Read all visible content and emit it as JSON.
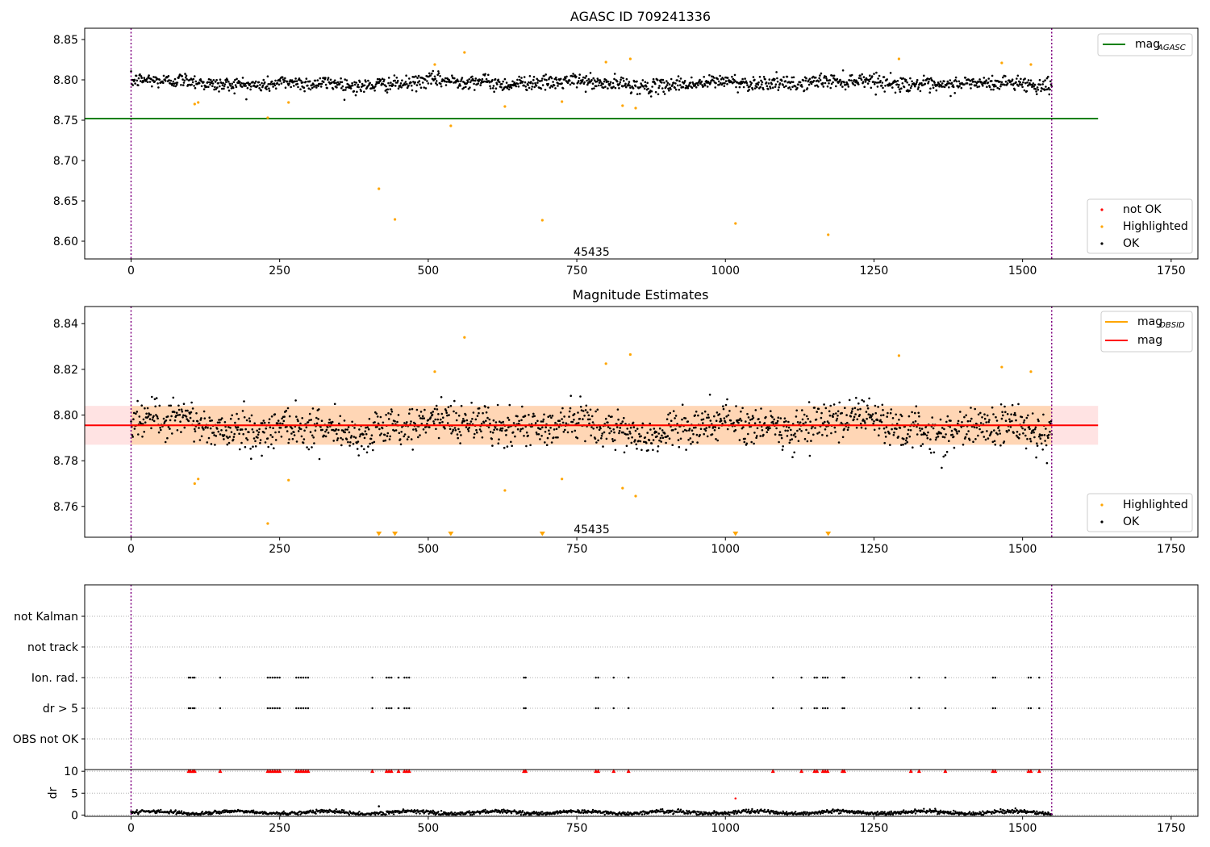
{
  "chart_data": [
    {
      "type": "scatter",
      "title": "AGASC ID 709241336",
      "xlabel": "",
      "ylabel": "",
      "xlim": [
        -78,
        1795
      ],
      "ylim": [
        8.578,
        8.864
      ],
      "xticks": [
        "0",
        "250",
        "500",
        "750",
        "1000",
        "1250",
        "1500",
        "1750"
      ],
      "xtick_values": [
        0,
        250,
        500,
        750,
        1000,
        1250,
        1500,
        1750
      ],
      "yticks": [
        "8.60",
        "8.65",
        "8.70",
        "8.75",
        "8.80",
        "8.85"
      ],
      "ytick_values": [
        8.6,
        8.65,
        8.7,
        8.75,
        8.8,
        8.85
      ],
      "grid": false,
      "vlines": [
        0,
        1549
      ],
      "obsid_label": "45435",
      "obsid_label_x": 775,
      "obsid_label_y": 8.586,
      "mag_agasc": 8.752,
      "mag_agasc_x": [
        -78,
        1627
      ],
      "ok_series": {
        "name": "OK",
        "x_range": [
          0,
          1549
        ],
        "center": 8.796,
        "scatter": 0.009,
        "color": "#000000"
      },
      "highlighted": [
        {
          "x": 107,
          "y": 8.77
        },
        {
          "x": 113,
          "y": 8.772
        },
        {
          "x": 230,
          "y": 8.753
        },
        {
          "x": 265,
          "y": 8.772
        },
        {
          "x": 417,
          "y": 8.665
        },
        {
          "x": 444,
          "y": 8.627
        },
        {
          "x": 511,
          "y": 8.819
        },
        {
          "x": 538,
          "y": 8.743
        },
        {
          "x": 561,
          "y": 8.834
        },
        {
          "x": 629,
          "y": 8.767
        },
        {
          "x": 692,
          "y": 8.626
        },
        {
          "x": 725,
          "y": 8.773
        },
        {
          "x": 799,
          "y": 8.822
        },
        {
          "x": 827,
          "y": 8.768
        },
        {
          "x": 840,
          "y": 8.826
        },
        {
          "x": 849,
          "y": 8.765
        },
        {
          "x": 1017,
          "y": 8.622
        },
        {
          "x": 1173,
          "y": 8.608
        },
        {
          "x": 1292,
          "y": 8.826
        },
        {
          "x": 1465,
          "y": 8.821
        },
        {
          "x": 1514,
          "y": 8.819
        }
      ],
      "legend_top": [
        {
          "label": "mag",
          "sub": "AGASC",
          "color": "#008000"
        }
      ],
      "legend_bottom": [
        {
          "label": "not OK",
          "color": "#ff0000"
        },
        {
          "label": "Highlighted",
          "color": "#ffa500"
        },
        {
          "label": "OK",
          "color": "#000000"
        }
      ],
      "legend_top_position": "top-right",
      "legend_bottom_position": "bottom-right"
    },
    {
      "type": "scatter",
      "title": "Magnitude Estimates",
      "xlabel": "",
      "ylabel": "",
      "xlim": [
        -78,
        1795
      ],
      "ylim": [
        8.7465,
        8.8475
      ],
      "xticks": [
        "0",
        "250",
        "500",
        "750",
        "1000",
        "1250",
        "1500",
        "1750"
      ],
      "xtick_values": [
        0,
        250,
        500,
        750,
        1000,
        1250,
        1500,
        1750
      ],
      "yticks": [
        "8.76",
        "8.78",
        "8.80",
        "8.82",
        "8.84"
      ],
      "ytick_values": [
        8.76,
        8.78,
        8.8,
        8.82,
        8.84
      ],
      "grid": false,
      "vlines": [
        0,
        1549
      ],
      "obsid_label": "45435",
      "obsid_label_x": 775,
      "obsid_label_y": 8.7497,
      "mag": 8.7955,
      "mag_x": [
        -78,
        1627
      ],
      "mag_band": [
        8.787,
        8.804
      ],
      "mag_obsid": 8.7955,
      "mag_obsid_x": [
        0,
        1549
      ],
      "obsid_band": [
        8.787,
        8.804
      ],
      "ok_series": {
        "name": "OK",
        "x_range": [
          0,
          1549
        ],
        "center": 8.795,
        "scatter": 0.0085,
        "color": "#000000"
      },
      "highlighted": [
        {
          "x": 107,
          "y": 8.77
        },
        {
          "x": 113,
          "y": 8.772
        },
        {
          "x": 230,
          "y": 8.7525
        },
        {
          "x": 265,
          "y": 8.7715
        },
        {
          "x": 511,
          "y": 8.819
        },
        {
          "x": 561,
          "y": 8.834
        },
        {
          "x": 629,
          "y": 8.767
        },
        {
          "x": 725,
          "y": 8.772
        },
        {
          "x": 799,
          "y": 8.8225
        },
        {
          "x": 827,
          "y": 8.768
        },
        {
          "x": 840,
          "y": 8.8265
        },
        {
          "x": 849,
          "y": 8.7645
        },
        {
          "x": 1292,
          "y": 8.826
        },
        {
          "x": 1465,
          "y": 8.821
        },
        {
          "x": 1514,
          "y": 8.819
        }
      ],
      "off_scale_low": [
        417,
        444,
        538,
        692,
        1017,
        1173
      ],
      "legend_top": [
        {
          "label": "mag",
          "sub": "OBSID",
          "color": "#ffa500"
        },
        {
          "label": "mag",
          "sub": "",
          "color": "#ff0000"
        }
      ],
      "legend_bottom": [
        {
          "label": "Highlighted",
          "color": "#ffa500"
        },
        {
          "label": "OK",
          "color": "#000000"
        }
      ],
      "legend_top_position": "top-right",
      "legend_bottom_position": "bottom-right"
    },
    {
      "type": "scatter",
      "title": "",
      "xlabel": "",
      "ylabel": "",
      "xlim": [
        -78,
        1795
      ],
      "categories": [
        "not Kalman",
        "not track",
        "Ion. rad.",
        "dr > 5",
        "OBS not OK"
      ],
      "vlines": [
        0,
        1549
      ],
      "flag_x": [
        97,
        100,
        104,
        107,
        150,
        230,
        234,
        238,
        242,
        246,
        250,
        278,
        282,
        286,
        290,
        294,
        298,
        406,
        430,
        434,
        438,
        450,
        460,
        464,
        468,
        661,
        664,
        782,
        786,
        812,
        837,
        1080,
        1128,
        1150,
        1154,
        1164,
        1168,
        1172,
        1197,
        1200,
        1312,
        1326,
        1370,
        1450,
        1454,
        1510,
        1514,
        1528
      ],
      "flag_rows": [
        "Ion. rad.",
        "dr > 5"
      ]
    },
    {
      "type": "scatter",
      "title": "",
      "xlabel": "",
      "ylabel": "dr",
      "xlim": [
        -78,
        1795
      ],
      "ylim": [
        -0.3,
        10.4
      ],
      "xticks": [
        "0",
        "250",
        "500",
        "750",
        "1000",
        "1250",
        "1500",
        "1750"
      ],
      "xtick_values": [
        0,
        250,
        500,
        750,
        1000,
        1250,
        1500,
        1750
      ],
      "yticks": [
        "0",
        "5",
        "10"
      ],
      "ytick_values": [
        0,
        5,
        10
      ],
      "vlines": [
        0,
        1549
      ],
      "ok_series": {
        "name": "OK",
        "x_range": [
          0,
          1549
        ],
        "center": 0.6,
        "scatter": 0.35,
        "color": "#000000"
      },
      "outliers": [
        {
          "x": 1017,
          "y": 3.8
        },
        {
          "x": 417,
          "y": 2.0
        }
      ],
      "clipped_x": [
        97,
        100,
        104,
        107,
        150,
        230,
        234,
        238,
        242,
        246,
        250,
        278,
        282,
        286,
        290,
        294,
        298,
        406,
        430,
        434,
        438,
        450,
        460,
        464,
        468,
        661,
        664,
        782,
        786,
        812,
        837,
        1080,
        1128,
        1150,
        1154,
        1164,
        1168,
        1172,
        1197,
        1200,
        1312,
        1326,
        1370,
        1450,
        1454,
        1510,
        1514,
        1528
      ]
    }
  ]
}
